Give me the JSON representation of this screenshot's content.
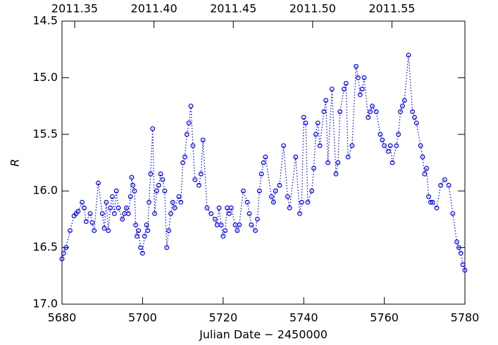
{
  "chart_data": {
    "type": "scatter",
    "xlabel": "Julian Date − 2450000",
    "ylabel": "R",
    "xlim": [
      5680,
      5780
    ],
    "xticks": [
      5680,
      5700,
      5720,
      5740,
      5760,
      5780
    ],
    "ylim": [
      17.0,
      14.5
    ],
    "yticks": [
      {
        "value": 17,
        "label": "17.0"
      },
      16.5,
      {
        "value": 16,
        "label": "16.0"
      },
      15.5,
      {
        "value": 15,
        "label": "15.0"
      },
      14.5
    ],
    "x2lim": [
      2011.342,
      2011.596
    ],
    "x2ticks": [
      2011.35,
      {
        "value": 2011.4,
        "label": "2011.40"
      },
      2011.45,
      {
        "value": 2011.5,
        "label": "2011.50"
      },
      2011.55
    ],
    "color": "#0000ee",
    "line_style": "dotted",
    "x": [
      5680,
      5680.4,
      5681,
      5682,
      5683,
      5683.5,
      5684,
      5685,
      5685.5,
      5686,
      5687,
      5687.5,
      5688,
      5689,
      5690,
      5690.5,
      5691,
      5691.5,
      5692,
      5692.5,
      5693,
      5693.5,
      5694,
      5695,
      5695.5,
      5696,
      5696.5,
      5697,
      5697.3,
      5697.6,
      5698,
      5698.3,
      5698.6,
      5699,
      5699.5,
      5700,
      5700.5,
      5701,
      5701.3,
      5701.6,
      5702,
      5702.5,
      5703,
      5703.5,
      5704,
      5704.5,
      5705,
      5705.5,
      5706,
      5706.5,
      5707,
      5707.5,
      5708,
      5709,
      5709.5,
      5710,
      5710.5,
      5711,
      5711.5,
      5712,
      5712.5,
      5713,
      5714,
      5714.5,
      5715,
      5716,
      5717,
      5718,
      5718.5,
      5719,
      5719.5,
      5720,
      5720.5,
      5721,
      5721.5,
      5722,
      5723,
      5723.5,
      5724,
      5725,
      5726,
      5726.5,
      5727,
      5728,
      5728.5,
      5729,
      5729.5,
      5730,
      5730.5,
      5732,
      5732.5,
      5733,
      5734,
      5735,
      5736,
      5736.5,
      5738,
      5739,
      5739.5,
      5740,
      5740.5,
      5741,
      5742,
      5742.5,
      5743,
      5743.5,
      5744,
      5745,
      5745.5,
      5746,
      5747,
      5748,
      5748.5,
      5749,
      5750,
      5750.5,
      5751,
      5752,
      5753,
      5753.5,
      5754,
      5754.5,
      5755,
      5756,
      5756.5,
      5757,
      5758,
      5759,
      5759.5,
      5760,
      5761,
      5761.5,
      5762,
      5763,
      5763.5,
      5764,
      5764.5,
      5765,
      5766,
      5767,
      5767.5,
      5768,
      5769,
      5769.5,
      5770,
      5770.5,
      5771,
      5771.5,
      5772,
      5773,
      5774,
      5775,
      5776,
      5777,
      5778,
      5778.5,
      5779,
      5779.5,
      5780
    ],
    "values": [
      16.6,
      16.55,
      16.5,
      16.35,
      16.22,
      16.2,
      16.18,
      16.1,
      16.15,
      16.27,
      16.2,
      16.28,
      16.35,
      15.93,
      16.2,
      16.33,
      16.1,
      16.35,
      16.15,
      16.05,
      16.2,
      16.0,
      16.15,
      16.25,
      16.2,
      16.15,
      16.2,
      16.05,
      15.88,
      15.95,
      16.0,
      16.3,
      16.4,
      16.35,
      16.5,
      16.55,
      16.4,
      16.3,
      16.35,
      16.1,
      15.85,
      15.45,
      16.2,
      16.0,
      15.95,
      15.85,
      15.9,
      16.0,
      16.5,
      16.35,
      16.2,
      16.1,
      16.15,
      16.05,
      16.1,
      15.75,
      15.7,
      15.5,
      15.4,
      15.25,
      15.6,
      15.9,
      15.95,
      15.85,
      15.55,
      16.15,
      16.2,
      16.25,
      16.3,
      16.15,
      16.3,
      16.4,
      16.35,
      16.15,
      16.2,
      16.15,
      16.3,
      16.35,
      16.3,
      16.0,
      16.1,
      16.2,
      16.3,
      16.35,
      16.25,
      16.0,
      15.85,
      15.75,
      15.7,
      16.05,
      16.1,
      16.0,
      15.95,
      15.6,
      16.05,
      16.15,
      15.7,
      16.2,
      16.1,
      15.35,
      15.4,
      16.1,
      16.0,
      15.8,
      15.5,
      15.4,
      15.6,
      15.3,
      15.2,
      15.75,
      15.1,
      15.85,
      15.75,
      15.3,
      15.1,
      15.05,
      15.7,
      15.6,
      14.9,
      15.0,
      15.15,
      15.1,
      15.0,
      15.35,
      15.3,
      15.25,
      15.3,
      15.5,
      15.55,
      15.6,
      15.65,
      15.6,
      15.75,
      15.6,
      15.5,
      15.3,
      15.25,
      15.2,
      14.8,
      15.3,
      15.35,
      15.4,
      15.6,
      15.7,
      15.85,
      15.8,
      16.05,
      16.1,
      16.1,
      16.15,
      15.95,
      15.9,
      15.95,
      16.2,
      16.45,
      16.5,
      16.55,
      16.65,
      16.7
    ]
  }
}
